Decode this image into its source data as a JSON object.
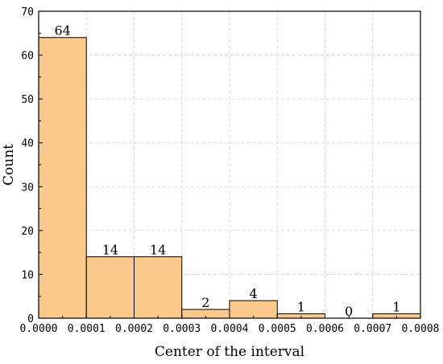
{
  "chart_data": {
    "type": "bar",
    "title": "",
    "xlabel": "Center of the interval",
    "ylabel": "Count",
    "xlim": [
      0,
      0.0008
    ],
    "ylim": [
      0,
      70
    ],
    "x_ticks": [
      "0.0000",
      "0.0001",
      "0.0002",
      "0.0003",
      "0.0004",
      "0.0005",
      "0.0006",
      "0.0007",
      "0.0008"
    ],
    "y_ticks": [
      "0",
      "10",
      "20",
      "30",
      "40",
      "50",
      "60",
      "70"
    ],
    "bins": [
      {
        "start": 0.0,
        "end": 0.0001,
        "count": 64,
        "label": "64"
      },
      {
        "start": 0.0001,
        "end": 0.0002,
        "count": 14,
        "label": "14"
      },
      {
        "start": 0.0002,
        "end": 0.0003,
        "count": 14,
        "label": "14"
      },
      {
        "start": 0.0003,
        "end": 0.0004,
        "count": 2,
        "label": "2"
      },
      {
        "start": 0.0004,
        "end": 0.0005,
        "count": 4,
        "label": "4"
      },
      {
        "start": 0.0005,
        "end": 0.0006,
        "count": 1,
        "label": "1"
      },
      {
        "start": 0.0006,
        "end": 0.0007,
        "count": 0,
        "label": "0"
      },
      {
        "start": 0.0007,
        "end": 0.0008,
        "count": 1,
        "label": "1"
      }
    ],
    "grid": true,
    "bar_color": "#fbc98c"
  }
}
